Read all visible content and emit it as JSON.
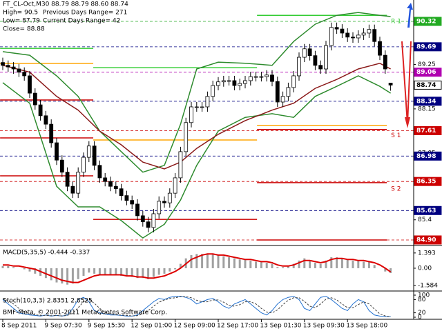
{
  "chart_data": [
    {
      "type": "candlestick",
      "header": [
        "FT_CL-Oct,M30  88.79 88.79 88.60 88.74",
        "High= 90.5",
        "Previous Days Range= 271",
        "Low= 87.79",
        "Current Days Range= 42",
        "Close= 88.88"
      ],
      "color": "#000000",
      "categories": [
        "8 Sep 2011",
        null,
        null,
        null,
        null,
        null,
        null,
        null,
        "9 Sep 07:30",
        null,
        null,
        null,
        null,
        null,
        null,
        null,
        "9 Sep 15:30",
        null,
        null,
        null,
        null,
        null,
        null,
        null,
        "12 Sep 01:00",
        null,
        null,
        null,
        null,
        null,
        null,
        null,
        "12 Sep 09:00",
        null,
        null,
        null,
        null,
        null,
        null,
        null,
        "12 Sep 17:00",
        null,
        null,
        null,
        null,
        null,
        null,
        null,
        "13 Sep 01:30",
        null,
        null,
        null,
        null,
        null,
        null,
        null,
        "13 Sep 09:30",
        null,
        null,
        null,
        null,
        null,
        null,
        null,
        "13 Sep 18:00",
        null,
        null,
        null,
        null,
        null,
        null,
        null,
        null
      ],
      "open": [
        89.3,
        89.23,
        89.19,
        89.14,
        89.06,
        88.97,
        88.54,
        88.25,
        87.98,
        87.77,
        87.31,
        86.88,
        86.58,
        86.23,
        86.06,
        86.58,
        86.95,
        87.23,
        86.75,
        86.44,
        86.35,
        86.23,
        86.17,
        86.0,
        85.88,
        85.79,
        85.5,
        85.35,
        85.21,
        85.55,
        85.86,
        85.82,
        86.06,
        86.44,
        87.09,
        87.81,
        88.2,
        88.2,
        88.2,
        88.46,
        88.73,
        88.82,
        88.85,
        88.85,
        88.73,
        88.78,
        88.85,
        88.95,
        88.95,
        88.95,
        88.99,
        88.83,
        88.32,
        88.46,
        88.68,
        88.97,
        89.43,
        89.64,
        89.47,
        89.23,
        89.14,
        89.72,
        90.17,
        90.13,
        90.03,
        89.93,
        89.91,
        89.98,
        90.03,
        90.12,
        89.82,
        89.48,
        88.79
      ],
      "high": [
        89.42,
        89.35,
        89.31,
        89.26,
        89.18,
        89.09,
        88.66,
        88.37,
        88.1,
        87.89,
        87.43,
        87.0,
        86.7,
        86.35,
        86.7,
        87.07,
        87.35,
        87.35,
        86.87,
        86.56,
        86.47,
        86.35,
        86.29,
        86.12,
        86.0,
        85.91,
        85.62,
        85.47,
        85.67,
        85.98,
        85.98,
        86.18,
        86.56,
        87.21,
        87.93,
        88.32,
        88.32,
        88.32,
        88.58,
        88.85,
        88.94,
        88.97,
        88.97,
        88.97,
        88.9,
        88.97,
        89.07,
        89.07,
        89.07,
        89.11,
        89.11,
        88.95,
        88.58,
        88.8,
        89.09,
        89.55,
        89.76,
        89.76,
        89.59,
        89.35,
        89.84,
        90.29,
        90.29,
        90.25,
        90.15,
        90.05,
        90.1,
        90.15,
        90.24,
        90.24,
        89.94,
        89.6,
        88.79
      ],
      "low": [
        89.11,
        89.07,
        89.02,
        88.94,
        88.85,
        88.42,
        88.13,
        87.86,
        87.65,
        87.19,
        86.76,
        86.46,
        86.11,
        85.94,
        85.94,
        86.46,
        86.83,
        86.63,
        86.32,
        86.23,
        86.11,
        86.05,
        85.88,
        85.76,
        85.67,
        85.38,
        85.23,
        85.09,
        85.09,
        85.43,
        85.7,
        85.7,
        85.94,
        86.32,
        86.97,
        87.69,
        88.08,
        88.08,
        88.08,
        88.34,
        88.61,
        88.7,
        88.73,
        88.61,
        88.61,
        88.66,
        88.73,
        88.83,
        88.83,
        88.83,
        88.71,
        88.2,
        88.2,
        88.34,
        88.56,
        88.85,
        89.31,
        89.35,
        89.11,
        89.02,
        89.02,
        89.6,
        90.01,
        89.91,
        89.81,
        89.79,
        89.79,
        89.86,
        89.91,
        89.7,
        89.36,
        89.02,
        88.6
      ],
      "close": [
        89.23,
        89.19,
        89.14,
        89.06,
        88.97,
        88.54,
        88.25,
        87.98,
        87.77,
        87.31,
        86.88,
        86.58,
        86.23,
        86.06,
        86.58,
        86.95,
        87.23,
        86.75,
        86.44,
        86.35,
        86.23,
        86.17,
        86.0,
        85.88,
        85.79,
        85.5,
        85.35,
        85.21,
        85.55,
        85.86,
        85.82,
        86.06,
        86.44,
        87.09,
        87.81,
        88.2,
        88.2,
        88.2,
        88.46,
        88.73,
        88.82,
        88.85,
        88.85,
        88.73,
        88.78,
        88.85,
        88.95,
        88.95,
        88.95,
        88.99,
        88.83,
        88.32,
        88.46,
        88.68,
        88.97,
        89.43,
        89.64,
        89.47,
        89.23,
        89.14,
        89.72,
        90.17,
        90.13,
        90.03,
        89.93,
        89.91,
        89.98,
        90.03,
        90.12,
        89.82,
        89.48,
        89.14,
        88.74
      ],
      "ylim": [
        84.78,
        90.85
      ],
      "yticks": [
        85.4,
        87.05,
        88.15,
        89.25
      ],
      "price_labels": [
        90.32,
        89.69,
        89.06,
        88.74,
        88.34,
        87.61,
        86.98,
        86.35,
        85.63,
        {
          "value": 84.9,
          "label": "84.90"
        }
      ],
      "price_label_colors": [
        "#22aa22",
        "#000080",
        "#b000b0",
        "#ffffff",
        "#000080",
        "#cc0000",
        "#000080",
        "#cc0000",
        "#000080",
        "#cc0000"
      ],
      "overlays": [
        {
          "color": "#2e8b2e",
          "x": [
            0,
            5,
            10,
            14,
            18,
            22,
            26,
            30,
            33,
            36,
            40,
            45,
            50,
            54,
            58,
            62,
            66,
            70,
            72
          ],
          "values": [
            89.57,
            89.48,
            88.97,
            88.46,
            87.6,
            87.09,
            86.58,
            86.75,
            87.77,
            89.14,
            89.31,
            89.28,
            89.23,
            89.82,
            90.25,
            90.47,
            90.54,
            90.47,
            90.44
          ]
        },
        {
          "color": "#2e8b2e",
          "x": [
            0,
            5,
            10,
            14,
            18,
            22,
            26,
            30,
            33,
            36,
            40,
            45,
            50,
            54,
            58,
            62,
            66,
            70,
            72
          ],
          "values": [
            88.8,
            88.29,
            86.23,
            85.72,
            85.72,
            85.38,
            84.95,
            85.29,
            85.89,
            86.75,
            87.6,
            87.94,
            88.03,
            87.94,
            88.46,
            88.71,
            88.97,
            88.71,
            88.54
          ]
        },
        {
          "color": "#8b1a1a",
          "x": [
            0,
            5,
            10,
            14,
            18,
            22,
            26,
            30,
            33,
            36,
            40,
            45,
            50,
            54,
            58,
            62,
            66,
            70,
            72
          ],
          "values": [
            89.23,
            89.06,
            88.46,
            88.12,
            87.6,
            87.26,
            86.83,
            86.66,
            86.83,
            87.17,
            87.52,
            87.86,
            88.12,
            88.29,
            88.66,
            88.88,
            89.14,
            89.28,
            89.14
          ]
        }
      ],
      "day_edges": [
        -0.5,
        16.8,
        47.2,
        71.3
      ],
      "levels": [
        {
          "color": "#ffa500",
          "values": [
            89.28,
            87.38,
            87.74
          ]
        },
        {
          "name": "R 1",
          "color": "#33cc33",
          "values": [
            89.65,
            89.17,
            90.47
          ]
        },
        {
          "name": "S 1",
          "color": "#cc0000",
          "values": [
            88.37,
            85.41,
            87.64
          ]
        },
        {
          "name": "S 2",
          "color": "#cc0000",
          "values": [
            87.43,
            null,
            86.32
          ]
        },
        {
          "color": "#cc0000",
          "values": [
            86.49,
            null,
            84.9
          ]
        }
      ]
    },
    {
      "type": "macd",
      "label": "MACD(5,35,5) -0.444 -0.337",
      "color": "#a0a0a0",
      "values": [
        0.2,
        0.2,
        0.1,
        0.0,
        -0.1,
        -0.3,
        -0.5,
        -0.7,
        -0.9,
        -1.1,
        -1.3,
        -1.4,
        -1.5,
        -1.4,
        -1.0,
        -0.7,
        -0.4,
        -0.5,
        -0.6,
        -0.6,
        -0.6,
        -0.6,
        -0.7,
        -0.7,
        -0.8,
        -0.9,
        -0.9,
        -1.0,
        -0.8,
        -0.6,
        -0.5,
        -0.3,
        -0.1,
        0.4,
        0.9,
        1.2,
        1.3,
        1.3,
        1.3,
        1.3,
        1.2,
        1.1,
        1.0,
        0.9,
        0.8,
        0.8,
        0.7,
        0.6,
        0.6,
        0.5,
        0.4,
        0.1,
        0.1,
        0.2,
        0.4,
        0.7,
        0.9,
        0.7,
        0.5,
        0.4,
        0.7,
        1.0,
        1.0,
        0.9,
        0.8,
        0.7,
        0.7,
        0.6,
        0.6,
        0.3,
        0.0,
        -0.3,
        -0.444
      ],
      "series": [
        {
          "color": "#dd0000",
          "values": [
            0.3,
            0.3,
            0.2,
            0.2,
            0.1,
            0.0,
            -0.1,
            -0.3,
            -0.5,
            -0.7,
            -0.9,
            -1.1,
            -1.2,
            -1.3,
            -1.3,
            -1.1,
            -0.9,
            -0.7,
            -0.6,
            -0.6,
            -0.6,
            -0.6,
            -0.6,
            -0.7,
            -0.7,
            -0.8,
            -0.8,
            -0.9,
            -0.9,
            -0.8,
            -0.7,
            -0.5,
            -0.3,
            0.0,
            0.4,
            0.8,
            1.0,
            1.2,
            1.3,
            1.3,
            1.2,
            1.2,
            1.1,
            1.0,
            0.9,
            0.8,
            0.8,
            0.7,
            0.6,
            0.6,
            0.5,
            0.3,
            0.2,
            0.2,
            0.3,
            0.5,
            0.7,
            0.7,
            0.6,
            0.5,
            0.6,
            0.8,
            0.9,
            0.9,
            0.8,
            0.8,
            0.7,
            0.7,
            0.6,
            0.5,
            0.3,
            0.0,
            -0.337
          ]
        }
      ],
      "ylim": [
        -2.02,
        1.95
      ],
      "yticks": [
        1.393,
        {
          "value": 0,
          "label": "0.00"
        },
        -1.584
      ]
    },
    {
      "type": "line",
      "label": "Stoch(10,3,3) 2.8351 2.8525",
      "series": [
        {
          "color": "#1f6fd0",
          "values": [
            80,
            60,
            40,
            20,
            15,
            10,
            8,
            5,
            10,
            5,
            8,
            5,
            10,
            40,
            80,
            90,
            70,
            30,
            20,
            15,
            10,
            10,
            8,
            5,
            5,
            10,
            30,
            50,
            70,
            85,
            80,
            90,
            95,
            95,
            90,
            80,
            60,
            70,
            80,
            85,
            70,
            50,
            40,
            60,
            70,
            80,
            60,
            40,
            20,
            10,
            30,
            60,
            80,
            90,
            95,
            80,
            40,
            30,
            60,
            90,
            95,
            80,
            60,
            40,
            30,
            60,
            80,
            70,
            30,
            10,
            5,
            3,
            2.8351
          ]
        },
        {
          "color": "#404040",
          "dash": true,
          "values": [
            85,
            75,
            60,
            40,
            25,
            15,
            11,
            8,
            8,
            7,
            8,
            6,
            8,
            18,
            43,
            70,
            80,
            63,
            40,
            22,
            15,
            12,
            9,
            8,
            6,
            7,
            15,
            30,
            50,
            68,
            78,
            85,
            88,
            93,
            93,
            88,
            77,
            70,
            70,
            78,
            78,
            68,
            53,
            50,
            57,
            70,
            70,
            60,
            40,
            23,
            20,
            33,
            57,
            77,
            88,
            88,
            72,
            50,
            43,
            60,
            82,
            88,
            78,
            60,
            43,
            43,
            57,
            70,
            60,
            37,
            15,
            6,
            2.8525
          ]
        }
      ],
      "ylim": [
        0,
        100
      ],
      "yticks": [
        0,
        20,
        80,
        100
      ]
    }
  ],
  "footer": "BMF-Meta, © 2001-2011 MetaQuotes Software Corp."
}
